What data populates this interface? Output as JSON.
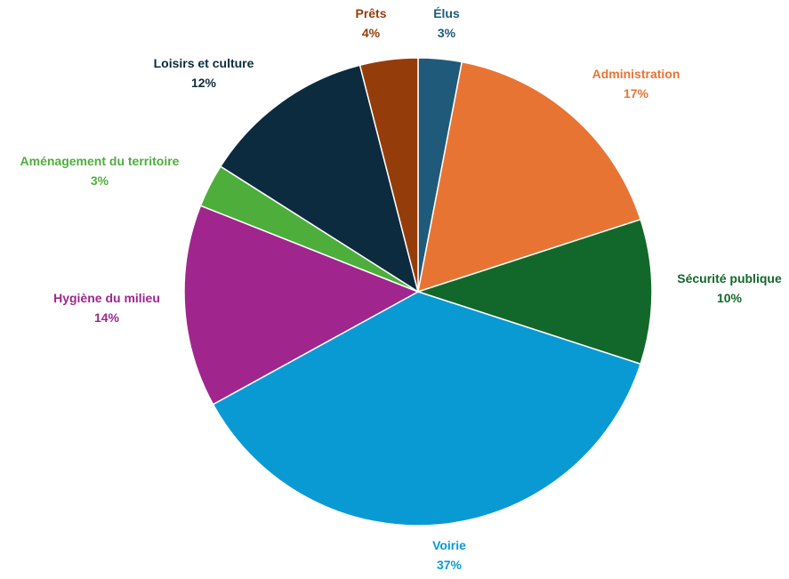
{
  "chart_data": {
    "type": "pie",
    "title": "",
    "slices": [
      {
        "label": "Élus",
        "value": 3,
        "value_label": "3%",
        "color": "#1f5a7a",
        "label_color": "#1f5a7a"
      },
      {
        "label": "Administration",
        "value": 17,
        "value_label": "17%",
        "color": "#e87434",
        "label_color": "#e87434"
      },
      {
        "label": "Sécurité publique",
        "value": 10,
        "value_label": "10%",
        "color": "#12682a",
        "label_color": "#12682a"
      },
      {
        "label": "Voirie",
        "value": 37,
        "value_label": "37%",
        "color": "#0a9ad3",
        "label_color": "#0a9ad3"
      },
      {
        "label": "Hygiène du milieu",
        "value": 14,
        "value_label": "14%",
        "color": "#a0268e",
        "label_color": "#a0268e"
      },
      {
        "label": "Aménagement du territoire",
        "value": 3,
        "value_label": "3%",
        "color": "#4eae3c",
        "label_color": "#4eae3c"
      },
      {
        "label": "Loisirs et culture",
        "value": 12,
        "value_label": "12%",
        "color": "#0c2b3e",
        "label_color": "#0c2b3e"
      },
      {
        "label": "Prêts",
        "value": 4,
        "value_label": "4%",
        "color": "#953d0a",
        "label_color": "#953d0a"
      }
    ],
    "legend": "none",
    "start": "top",
    "direction": "clockwise"
  }
}
